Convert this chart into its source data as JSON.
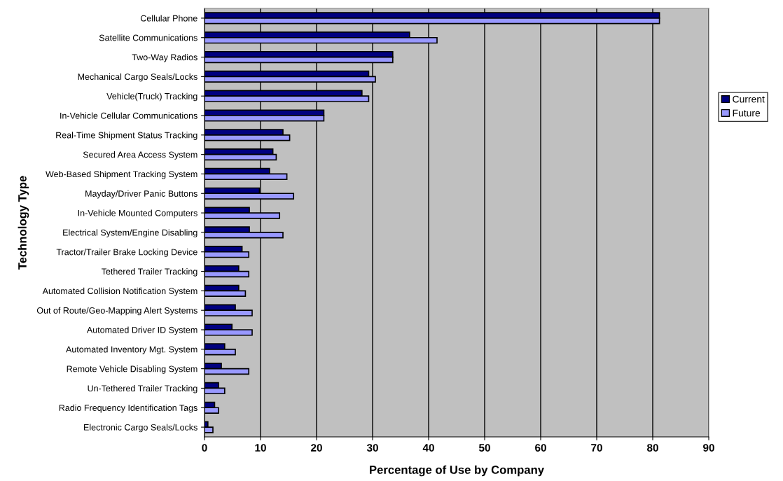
{
  "chart_data": {
    "type": "bar",
    "orientation": "horizontal",
    "xlabel": "Percentage of Use by Company",
    "ylabel": "Technology Type",
    "categories": [
      "Cellular Phone",
      "Satellite Communications",
      "Two-Way Radios",
      "Mechanical Cargo Seals/Locks",
      "Vehicle(Truck) Tracking",
      "In-Vehicle Cellular Communications",
      "Real-Time Shipment Status Tracking",
      "Secured Area Access System",
      "Web-Based Shipment Tracking System",
      "Mayday/Driver Panic Buttons",
      "In-Vehicle Mounted Computers",
      "Electrical System/Engine Disabling",
      "Tractor/Trailer Brake Locking Device",
      "Tethered Trailer Tracking",
      "Automated Collision Notification System",
      "Out of Route/Geo-Mapping Alert Systems",
      "Automated Driver ID System",
      "Automated Inventory Mgt. System",
      "Remote Vehicle Disabling System",
      "Un-Tethered Trailer Tracking",
      "Radio Frequency Identification Tags",
      "Electronic Cargo Seals/Locks"
    ],
    "series": [
      {
        "name": "Current",
        "color": "#000080",
        "values": [
          81.2,
          36.6,
          33.6,
          29.3,
          28.1,
          21.3,
          14.0,
          12.2,
          11.6,
          9.8,
          8.0,
          8.0,
          6.7,
          6.1,
          6.1,
          5.5,
          4.9,
          3.6,
          3.0,
          2.5,
          1.8,
          0.6
        ]
      },
      {
        "name": "Future",
        "color": "#9999ff",
        "values": [
          81.2,
          41.5,
          33.6,
          30.5,
          29.3,
          21.3,
          15.2,
          12.8,
          14.7,
          15.9,
          13.4,
          14.0,
          7.9,
          7.9,
          7.3,
          8.5,
          8.5,
          5.5,
          7.9,
          3.6,
          2.5,
          1.5
        ]
      }
    ],
    "xlim": [
      0,
      90
    ],
    "xticks": [
      0,
      10,
      20,
      30,
      40,
      50,
      60,
      70,
      80,
      90
    ],
    "grid": "x",
    "legend": "right"
  }
}
